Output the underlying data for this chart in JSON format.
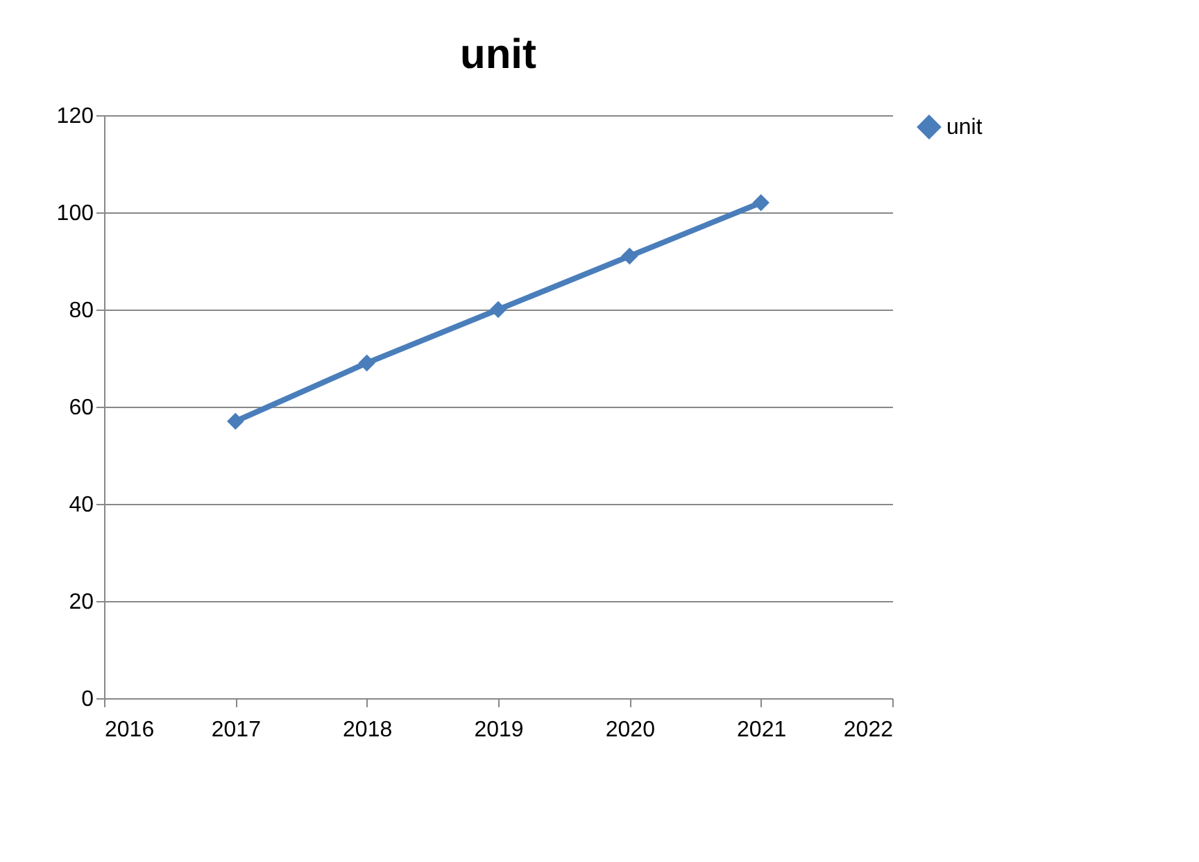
{
  "chart_data": {
    "type": "line",
    "title": "unit",
    "x": [
      2017,
      2018,
      2019,
      2020,
      2021
    ],
    "series": [
      {
        "name": "unit",
        "color": "#4a7ebb",
        "values": [
          57,
          69,
          80,
          91,
          102
        ]
      }
    ],
    "xlim": [
      2016,
      2022
    ],
    "xticks": [
      2016,
      2017,
      2018,
      2019,
      2020,
      2021,
      2022
    ],
    "ylim": [
      0,
      120
    ],
    "yticks": [
      0,
      20,
      40,
      60,
      80,
      100,
      120
    ],
    "grid": "y",
    "legend": "right",
    "marker": "diamond",
    "line_style": "solid"
  }
}
